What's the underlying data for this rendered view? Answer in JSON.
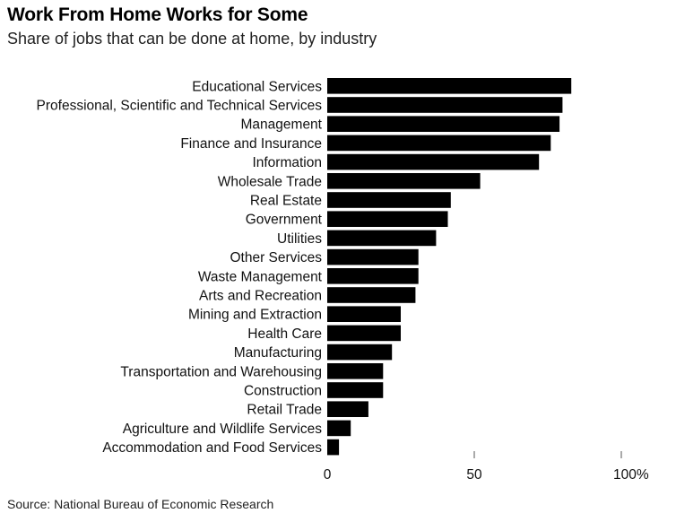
{
  "chart_data": {
    "type": "bar",
    "orientation": "horizontal",
    "title": "Work From Home Works for Some",
    "subtitle": "Share of jobs that can be done at home, by industry",
    "source": "Source: National Bureau of Economic Research",
    "categories": [
      "Educational Services",
      "Professional, Scientific and Technical Services",
      "Management",
      "Finance and Insurance",
      "Information",
      "Wholesale Trade",
      "Real Estate",
      "Government",
      "Utilities",
      "Other Services",
      "Waste Management",
      "Arts and Recreation",
      "Mining and Extraction",
      "Health Care",
      "Manufacturing",
      "Transportation and Warehousing",
      "Construction",
      "Retail Trade",
      "Agriculture and Wildlife Services",
      "Accommodation and Food Services"
    ],
    "values": [
      83,
      80,
      79,
      76,
      72,
      52,
      42,
      41,
      37,
      31,
      31,
      30,
      25,
      25,
      22,
      19,
      19,
      14,
      8,
      4
    ],
    "xlim": [
      0,
      100
    ],
    "ticks": [
      {
        "value": 0,
        "label": "0"
      },
      {
        "value": 50,
        "label": "50"
      },
      {
        "value": 100,
        "label": "100%"
      }
    ],
    "bar_color": "#000000",
    "grid": false,
    "legend": false
  }
}
